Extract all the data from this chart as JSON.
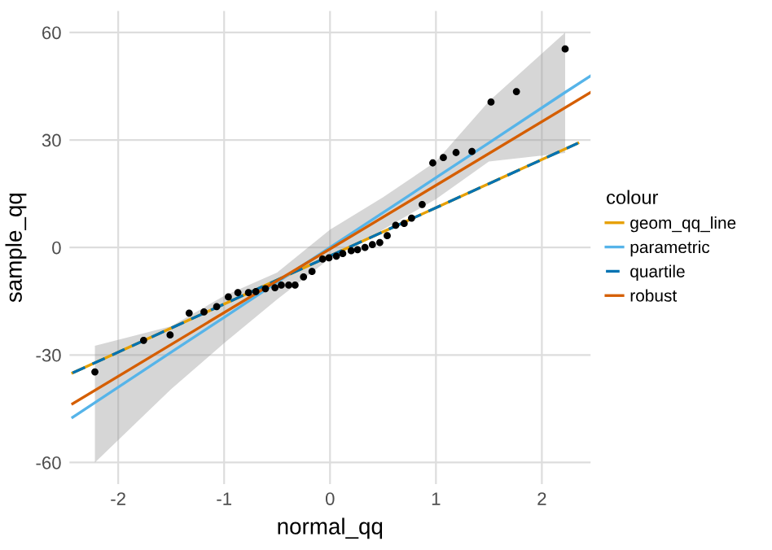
{
  "chart_data": {
    "type": "scatter",
    "xlabel": "normal_qq",
    "ylabel": "sample_qq",
    "legend_title": "colour",
    "legend": "right",
    "grid": true,
    "xlim": [
      -2.46,
      2.46
    ],
    "ylim": [
      -66,
      66
    ],
    "xticks": [
      -2,
      -1,
      0,
      1,
      2
    ],
    "yticks": [
      -60,
      -30,
      0,
      30,
      60
    ],
    "series": [
      {
        "type": "line",
        "name": "geom_qq_line",
        "color": "#e69f00",
        "line_style": "solid",
        "x": [
          -2.43,
          2.34
        ],
        "values": [
          -35,
          29.1
        ]
      },
      {
        "type": "line",
        "name": "parametric",
        "color": "#56b4e9",
        "line_style": "solid",
        "x": [
          -2.43,
          -2.22,
          -1.5,
          -1,
          -0.5,
          0,
          0.5,
          1,
          1.5,
          2.22,
          2.46
        ],
        "values": [
          -47.4,
          -43.3,
          -29.2,
          -19.5,
          -9.7,
          0,
          9.7,
          19.5,
          29.2,
          43.3,
          47.9
        ],
        "lower": [
          null,
          -60,
          -39.5,
          -26.7,
          -14.5,
          -3,
          5,
          13.5,
          24,
          26.4,
          null
        ],
        "upper": [
          null,
          -27.4,
          -22,
          -13.5,
          -7,
          5,
          14,
          24,
          40.8,
          60,
          null
        ]
      },
      {
        "type": "line",
        "name": "quartile",
        "color": "#0072b2",
        "line_style": "dashed",
        "x": [
          -2.43,
          2.34
        ],
        "values": [
          -35,
          29.1
        ]
      },
      {
        "type": "line",
        "name": "robust",
        "color": "#d55e00",
        "line_style": "solid",
        "x": [
          -2.43,
          2.46
        ],
        "values": [
          -43.6,
          43.3
        ]
      },
      {
        "color": "#000000",
        "marker": "circle",
        "x": [
          -2.22,
          -1.76,
          -1.51,
          -1.33,
          -1.19,
          -1.07,
          -0.96,
          -0.87,
          -0.77,
          -0.7,
          -0.61,
          -0.52,
          -0.46,
          -0.39,
          -0.33,
          -0.25,
          -0.17,
          -0.07,
          -0.01,
          0.06,
          0.12,
          0.2,
          0.26,
          0.33,
          0.4,
          0.47,
          0.54,
          0.62,
          0.7,
          0.77,
          0.87,
          0.97,
          1.07,
          1.19,
          1.34,
          1.52,
          1.76,
          2.22
        ],
        "values": [
          -34.7,
          -25.9,
          -24.4,
          -18.3,
          -18.0,
          -16.5,
          -13.8,
          -12.6,
          -12.6,
          -12.3,
          -11.5,
          -11.2,
          -10.5,
          -10.5,
          -10.5,
          -8.2,
          -6.7,
          -3.2,
          -2.9,
          -2.4,
          -1.7,
          -0.9,
          -0.6,
          0,
          0.8,
          1.4,
          3.3,
          6.2,
          6.7,
          8.2,
          12.0,
          23.6,
          25.1,
          26.5,
          26.8,
          40.6,
          43.5,
          55.4
        ]
      }
    ]
  }
}
